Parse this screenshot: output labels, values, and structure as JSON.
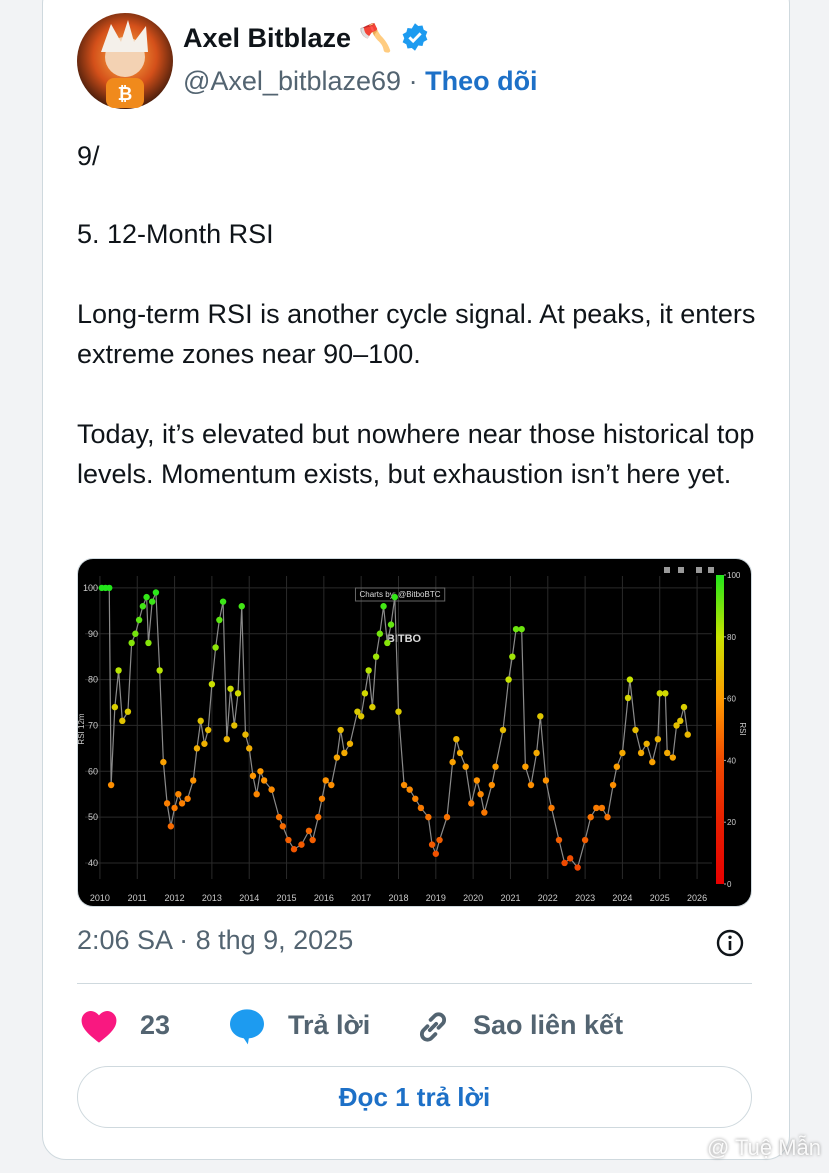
{
  "author": {
    "name": "Axel Bitblaze 🪓",
    "handle": "@Axel_bitblaze69",
    "separator": "·",
    "follow": "Theo dõi"
  },
  "tweet": {
    "paragraphs": [
      "9/",
      "5. 12-Month RSI",
      "Long-term RSI is another cycle signal. At peaks, it enters extreme zones near 90–100.",
      "Today, it’s elevated but nowhere near those historical top levels. Momentum exists, but exhaustion isn’t here yet."
    ]
  },
  "chart_data": {
    "type": "scatter",
    "connect": true,
    "line_color": "#8a8a8a",
    "background": "#000000",
    "grid": true,
    "ylabel": "RSI 12m",
    "annotation": "Charts by: @BitboBTC",
    "watermark": "BITBO",
    "x": [
      2010.05,
      2010.15,
      2010.25,
      2010.3,
      2010.4,
      2010.5,
      2010.6,
      2010.75,
      2010.85,
      2010.95,
      2011.05,
      2011.15,
      2011.25,
      2011.3,
      2011.4,
      2011.5,
      2011.6,
      2011.7,
      2011.8,
      2011.9,
      2012.0,
      2012.1,
      2012.2,
      2012.35,
      2012.5,
      2012.6,
      2012.7,
      2012.8,
      2012.9,
      2013.0,
      2013.1,
      2013.2,
      2013.3,
      2013.4,
      2013.5,
      2013.6,
      2013.7,
      2013.8,
      2013.9,
      2014.0,
      2014.1,
      2014.2,
      2014.3,
      2014.4,
      2014.6,
      2014.8,
      2014.9,
      2015.05,
      2015.2,
      2015.4,
      2015.6,
      2015.7,
      2015.85,
      2015.95,
      2016.05,
      2016.2,
      2016.35,
      2016.45,
      2016.55,
      2016.7,
      2016.9,
      2017.0,
      2017.1,
      2017.2,
      2017.3,
      2017.4,
      2017.5,
      2017.6,
      2017.7,
      2017.8,
      2017.9,
      2018.0,
      2018.15,
      2018.3,
      2018.45,
      2018.6,
      2018.8,
      2018.9,
      2019.0,
      2019.1,
      2019.3,
      2019.45,
      2019.55,
      2019.65,
      2019.8,
      2019.95,
      2020.1,
      2020.2,
      2020.3,
      2020.5,
      2020.6,
      2020.8,
      2020.95,
      2021.05,
      2021.15,
      2021.3,
      2021.4,
      2021.55,
      2021.7,
      2021.8,
      2021.95,
      2022.1,
      2022.3,
      2022.45,
      2022.6,
      2022.8,
      2023.0,
      2023.15,
      2023.3,
      2023.45,
      2023.6,
      2023.75,
      2023.85,
      2024.0,
      2024.15,
      2024.2,
      2024.35,
      2024.5,
      2024.65,
      2024.8,
      2024.95,
      2025.0,
      2025.15,
      2025.2,
      2025.35,
      2025.45,
      2025.55,
      2025.65,
      2025.75
    ],
    "values": [
      100,
      100,
      100,
      57,
      74,
      82,
      71,
      73,
      88,
      90,
      93,
      96,
      98,
      88,
      97,
      99,
      82,
      62,
      53,
      48,
      52,
      55,
      53,
      54,
      58,
      65,
      71,
      66,
      69,
      79,
      87,
      93,
      97,
      67,
      78,
      70,
      77,
      96,
      68,
      65,
      59,
      55,
      60,
      58,
      56,
      50,
      48,
      45,
      43,
      44,
      47,
      45,
      50,
      54,
      58,
      57,
      63,
      69,
      64,
      66,
      73,
      72,
      77,
      82,
      74,
      85,
      90,
      96,
      88,
      92,
      98,
      73,
      57,
      56,
      54,
      52,
      50,
      44,
      42,
      45,
      50,
      62,
      67,
      64,
      61,
      53,
      58,
      55,
      51,
      57,
      61,
      69,
      80,
      85,
      91,
      91,
      61,
      57,
      64,
      72,
      58,
      52,
      45,
      40,
      41,
      39,
      45,
      50,
      52,
      52,
      50,
      57,
      61,
      64,
      76,
      80,
      69,
      64,
      66,
      62,
      67,
      77,
      77,
      64,
      63,
      70,
      71,
      74,
      68
    ],
    "xlim": [
      2009.6,
      2026.4
    ],
    "xticks": [
      2010,
      2011,
      2012,
      2013,
      2014,
      2015,
      2016,
      2017,
      2018,
      2019,
      2020,
      2021,
      2022,
      2023,
      2024,
      2025,
      2026
    ],
    "ylim": [
      36.5,
      102.6
    ],
    "yticks": [
      40,
      50,
      60,
      70,
      80,
      90,
      100
    ],
    "colorbar": {
      "title": "RSI",
      "lim": [
        0,
        100
      ],
      "ticks": [
        0,
        20,
        40,
        60,
        80,
        100
      ],
      "colorscale": [
        "#e80000",
        "#e81e00",
        "#f04a00",
        "#ff9a00",
        "#c8e400",
        "#22e61a"
      ]
    }
  },
  "footer": {
    "timestamp": "2:06 SA · 8 thg 9, 2025",
    "likes": "23",
    "reply": "Trả lời",
    "copy_link": "Sao liên kết",
    "read_replies": "Đọc 1 trả lời",
    "watermark": "@ Tuệ Mẫn"
  }
}
